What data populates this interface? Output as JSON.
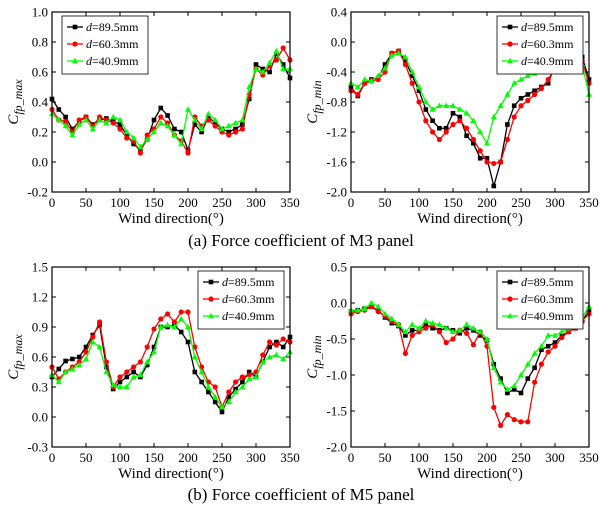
{
  "captions": {
    "a": "(a) Force coefficient of M3 panel",
    "b": "(b) Force coefficient of M5 panel"
  },
  "colors": {
    "d89_5": "#000000",
    "d60_3": "#ff0000",
    "d40_9": "#00ff00"
  },
  "chart_data": [
    {
      "id": "m3-max",
      "type": "line",
      "xlabel": "Wind direction(°)",
      "ylabel": "C_fp_max",
      "ylabel_main": "C",
      "ylabel_sub": "fp_max",
      "xlim": [
        0,
        350
      ],
      "ylim": [
        -0.2,
        1.0
      ],
      "xticks": [
        "0",
        "50",
        "100",
        "150",
        "200",
        "250",
        "300",
        "350"
      ],
      "yticks": [
        "-0.2",
        "0.0",
        "0.2",
        "0.4",
        "0.6",
        "0.8",
        "1.0"
      ],
      "legend_position": "top-left",
      "x": [
        0,
        10,
        20,
        30,
        40,
        50,
        60,
        70,
        80,
        90,
        100,
        110,
        120,
        130,
        140,
        150,
        160,
        170,
        180,
        190,
        200,
        210,
        220,
        230,
        240,
        250,
        260,
        270,
        280,
        290,
        300,
        310,
        320,
        330,
        340,
        350
      ],
      "series": [
        {
          "name": "d=89.5mm",
          "label_italic": "d",
          "label_rest": "=89.5mm",
          "color_key": "d89_5",
          "marker": "square",
          "values": [
            0.42,
            0.35,
            0.3,
            0.22,
            0.27,
            0.3,
            0.25,
            0.28,
            0.29,
            0.27,
            0.25,
            0.18,
            0.12,
            0.08,
            0.15,
            0.28,
            0.36,
            0.31,
            0.22,
            0.2,
            0.08,
            0.25,
            0.2,
            0.3,
            0.26,
            0.22,
            0.2,
            0.22,
            0.25,
            0.42,
            0.65,
            0.62,
            0.6,
            0.72,
            0.65,
            0.56
          ]
        },
        {
          "name": "d=60.3mm",
          "label_italic": "d",
          "label_rest": "=60.3mm",
          "color_key": "d60_3",
          "marker": "circle",
          "values": [
            0.35,
            0.28,
            0.27,
            0.2,
            0.28,
            0.3,
            0.24,
            0.3,
            0.28,
            0.26,
            0.22,
            0.16,
            0.14,
            0.06,
            0.18,
            0.22,
            0.3,
            0.26,
            0.18,
            0.14,
            0.06,
            0.3,
            0.24,
            0.28,
            0.24,
            0.2,
            0.18,
            0.2,
            0.22,
            0.45,
            0.62,
            0.58,
            0.64,
            0.68,
            0.76,
            0.68
          ]
        },
        {
          "name": "d=40.9mm",
          "label_italic": "d",
          "label_rest": "=40.9mm",
          "color_key": "d40_9",
          "marker": "triangle",
          "values": [
            0.32,
            0.28,
            0.24,
            0.18,
            0.25,
            0.28,
            0.22,
            0.28,
            0.26,
            0.3,
            0.28,
            0.2,
            0.16,
            0.1,
            0.15,
            0.2,
            0.26,
            0.24,
            0.18,
            0.12,
            0.35,
            0.28,
            0.22,
            0.32,
            0.28,
            0.22,
            0.24,
            0.26,
            0.28,
            0.5,
            0.62,
            0.6,
            0.66,
            0.74,
            0.62,
            0.62
          ]
        }
      ]
    },
    {
      "id": "m3-min",
      "type": "line",
      "xlabel": "Wind direction(°)",
      "ylabel": "C_fp_min",
      "ylabel_main": "C",
      "ylabel_sub": "fp_min",
      "xlim": [
        0,
        350
      ],
      "ylim": [
        -2.0,
        0.4
      ],
      "xticks": [
        "0",
        "50",
        "100",
        "150",
        "200",
        "250",
        "300",
        "350"
      ],
      "yticks": [
        "-2.0",
        "-1.6",
        "-1.2",
        "-0.8",
        "-0.4",
        "0.0",
        "0.4"
      ],
      "legend_position": "top-right",
      "x": [
        0,
        10,
        20,
        30,
        40,
        50,
        60,
        70,
        80,
        90,
        100,
        110,
        120,
        130,
        140,
        150,
        160,
        170,
        180,
        190,
        200,
        210,
        220,
        230,
        240,
        250,
        260,
        270,
        280,
        290,
        300,
        310,
        320,
        330,
        340,
        350
      ],
      "series": [
        {
          "name": "d=89.5mm",
          "label_italic": "d",
          "label_rest": "=89.5mm",
          "color_key": "d89_5",
          "marker": "square",
          "values": [
            -0.6,
            -0.72,
            -0.55,
            -0.5,
            -0.48,
            -0.3,
            -0.15,
            -0.12,
            -0.25,
            -0.45,
            -0.65,
            -0.9,
            -1.05,
            -1.15,
            -1.15,
            -0.95,
            -1.0,
            -1.25,
            -1.35,
            -1.55,
            -1.55,
            -1.92,
            -1.6,
            -1.1,
            -0.85,
            -0.75,
            -0.7,
            -0.65,
            -0.6,
            -0.55,
            -0.3,
            -0.25,
            -0.1,
            0.0,
            -0.2,
            -0.5
          ]
        },
        {
          "name": "d=60.3mm",
          "label_italic": "d",
          "label_rest": "=60.3mm",
          "color_key": "d60_3",
          "marker": "circle",
          "values": [
            -0.65,
            -0.7,
            -0.55,
            -0.52,
            -0.5,
            -0.4,
            -0.15,
            -0.12,
            -0.3,
            -0.55,
            -0.8,
            -1.05,
            -1.2,
            -1.3,
            -1.2,
            -1.1,
            -1.05,
            -1.15,
            -1.3,
            -1.45,
            -1.6,
            -1.62,
            -1.6,
            -1.3,
            -1.0,
            -0.85,
            -0.78,
            -0.7,
            -0.62,
            -0.5,
            -0.35,
            -0.22,
            -0.12,
            -0.02,
            -0.25,
            -0.55
          ]
        },
        {
          "name": "d=40.9mm",
          "label_italic": "d",
          "label_rest": "=40.9mm",
          "color_key": "d40_9",
          "marker": "triangle",
          "values": [
            -0.55,
            -0.6,
            -0.5,
            -0.52,
            -0.45,
            -0.35,
            -0.18,
            -0.15,
            -0.2,
            -0.4,
            -0.6,
            -0.8,
            -0.9,
            -0.85,
            -0.85,
            -0.85,
            -0.9,
            -0.95,
            -1.05,
            -1.2,
            -1.35,
            -1.0,
            -0.85,
            -0.7,
            -0.55,
            -0.5,
            -0.45,
            -0.42,
            -0.4,
            -0.38,
            -0.25,
            -0.15,
            -0.08,
            0.0,
            -0.3,
            -0.7
          ]
        }
      ]
    },
    {
      "id": "m5-max",
      "type": "line",
      "xlabel": "Wind direction(°)",
      "ylabel": "C_fp_max",
      "ylabel_main": "C",
      "ylabel_sub": "fp_max",
      "xlim": [
        0,
        350
      ],
      "ylim": [
        -0.3,
        1.5
      ],
      "xticks": [
        "0",
        "50",
        "100",
        "150",
        "200",
        "250",
        "300",
        "350"
      ],
      "yticks": [
        "-0.3",
        "0.0",
        "0.3",
        "0.6",
        "0.9",
        "1.2",
        "1.5"
      ],
      "legend_position": "top-right",
      "x": [
        0,
        10,
        20,
        30,
        40,
        50,
        60,
        70,
        80,
        90,
        100,
        110,
        120,
        130,
        140,
        150,
        160,
        170,
        180,
        190,
        200,
        210,
        220,
        230,
        240,
        250,
        260,
        270,
        280,
        290,
        300,
        310,
        320,
        330,
        340,
        350
      ],
      "series": [
        {
          "name": "d=89.5mm",
          "label_italic": "d",
          "label_rest": "=89.5mm",
          "color_key": "d89_5",
          "marker": "square",
          "values": [
            0.4,
            0.48,
            0.56,
            0.58,
            0.6,
            0.7,
            0.82,
            0.92,
            0.5,
            0.28,
            0.35,
            0.4,
            0.45,
            0.4,
            0.52,
            0.7,
            0.9,
            0.9,
            0.92,
            0.85,
            0.75,
            0.45,
            0.35,
            0.25,
            0.15,
            0.05,
            0.2,
            0.28,
            0.35,
            0.45,
            0.4,
            0.55,
            0.7,
            0.75,
            0.7,
            0.8
          ]
        },
        {
          "name": "d=60.3mm",
          "label_italic": "d",
          "label_rest": "=60.3mm",
          "color_key": "d60_3",
          "marker": "circle",
          "values": [
            0.5,
            0.38,
            0.45,
            0.5,
            0.55,
            0.65,
            0.8,
            0.95,
            0.55,
            0.3,
            0.4,
            0.45,
            0.5,
            0.55,
            0.7,
            0.88,
            0.98,
            1.03,
            0.95,
            1.05,
            1.05,
            0.7,
            0.5,
            0.35,
            0.3,
            0.1,
            0.25,
            0.35,
            0.4,
            0.42,
            0.45,
            0.62,
            0.75,
            0.72,
            0.78,
            0.75
          ]
        },
        {
          "name": "d=40.9mm",
          "label_italic": "d",
          "label_rest": "=40.9mm",
          "color_key": "d40_9",
          "marker": "triangle",
          "values": [
            0.42,
            0.35,
            0.45,
            0.48,
            0.52,
            0.58,
            0.75,
            0.7,
            0.45,
            0.32,
            0.3,
            0.3,
            0.4,
            0.42,
            0.55,
            0.65,
            0.9,
            0.92,
            0.9,
            0.98,
            0.9,
            0.6,
            0.45,
            0.3,
            0.2,
            0.1,
            0.15,
            0.25,
            0.3,
            0.38,
            0.4,
            0.55,
            0.6,
            0.62,
            0.58,
            0.65
          ]
        }
      ]
    },
    {
      "id": "m5-min",
      "type": "line",
      "xlabel": "Wind direction(°)",
      "ylabel": "C_fp_min",
      "ylabel_main": "C",
      "ylabel_sub": "fp_min",
      "xlim": [
        0,
        350
      ],
      "ylim": [
        -2.0,
        0.5
      ],
      "xticks": [
        "0",
        "50",
        "100",
        "150",
        "200",
        "250",
        "300",
        "350"
      ],
      "yticks": [
        "-2.0",
        "-1.5",
        "-1.0",
        "-0.5",
        "0.0",
        "0.5"
      ],
      "legend_position": "top-right",
      "x": [
        0,
        10,
        20,
        30,
        40,
        50,
        60,
        70,
        80,
        90,
        100,
        110,
        120,
        130,
        140,
        150,
        160,
        170,
        180,
        190,
        200,
        210,
        220,
        230,
        240,
        250,
        260,
        270,
        280,
        290,
        300,
        310,
        320,
        330,
        340,
        350
      ],
      "series": [
        {
          "name": "d=89.5mm",
          "label_italic": "d",
          "label_rest": "=89.5mm",
          "color_key": "d89_5",
          "marker": "square",
          "values": [
            -0.12,
            -0.1,
            -0.08,
            -0.05,
            -0.1,
            -0.2,
            -0.28,
            -0.32,
            -0.45,
            -0.38,
            -0.38,
            -0.3,
            -0.35,
            -0.38,
            -0.35,
            -0.38,
            -0.42,
            -0.35,
            -0.38,
            -0.45,
            -0.52,
            -0.85,
            -1.05,
            -1.25,
            -1.2,
            -1.25,
            -1.05,
            -0.9,
            -0.65,
            -0.6,
            -0.55,
            -0.45,
            -0.4,
            -0.35,
            -0.25,
            -0.1
          ]
        },
        {
          "name": "d=60.3mm",
          "label_italic": "d",
          "label_rest": "=60.3mm",
          "color_key": "d60_3",
          "marker": "circle",
          "values": [
            -0.15,
            -0.12,
            -0.1,
            -0.05,
            -0.12,
            -0.18,
            -0.25,
            -0.3,
            -0.7,
            -0.45,
            -0.4,
            -0.35,
            -0.3,
            -0.4,
            -0.55,
            -0.5,
            -0.38,
            -0.42,
            -0.58,
            -0.4,
            -0.6,
            -1.45,
            -1.7,
            -1.55,
            -1.62,
            -1.65,
            -1.65,
            -1.1,
            -0.85,
            -0.68,
            -0.6,
            -0.48,
            -0.4,
            -0.35,
            -0.25,
            -0.15
          ]
        },
        {
          "name": "d=40.9mm",
          "label_italic": "d",
          "label_rest": "=40.9mm",
          "color_key": "d40_9",
          "marker": "triangle",
          "values": [
            -0.1,
            -0.1,
            -0.08,
            0.0,
            -0.05,
            -0.15,
            -0.22,
            -0.3,
            -0.4,
            -0.3,
            -0.35,
            -0.25,
            -0.28,
            -0.3,
            -0.35,
            -0.4,
            -0.38,
            -0.3,
            -0.35,
            -0.4,
            -0.5,
            -0.9,
            -1.1,
            -1.2,
            -1.15,
            -1.0,
            -0.85,
            -0.7,
            -0.6,
            -0.45,
            -0.45,
            -0.4,
            -0.35,
            -0.3,
            -0.2,
            -0.05
          ]
        }
      ]
    }
  ]
}
